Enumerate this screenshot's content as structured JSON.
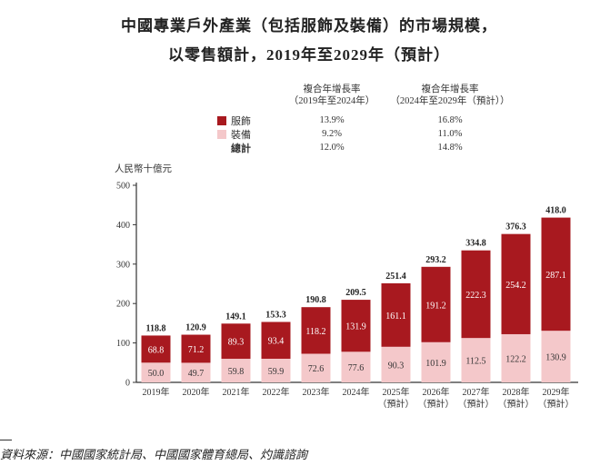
{
  "title_line1": "中國專業戶外產業（包括服飾及裝備）的市場規模，",
  "title_line2": "以零售額計，2019年至2029年（預計）",
  "cagr_table": {
    "headers": [
      {
        "line1": "複合年增長率",
        "line2": "（2019年至2024年）"
      },
      {
        "line1": "複合年增長率",
        "line2": "（2024年至2029年（預計））"
      }
    ],
    "rows": [
      {
        "label": "服飾",
        "color": "#A8191F",
        "values": [
          "13.9%",
          "16.8%"
        ]
      },
      {
        "label": "裝備",
        "color": "#F4C8CA",
        "values": [
          "9.2%",
          "11.0%"
        ]
      },
      {
        "label": "總計",
        "values": [
          "12.0%",
          "14.8%"
        ]
      }
    ]
  },
  "source": "資料來源：中國國家統計局、中國國家體育總局、灼識諮詢",
  "chart_data": {
    "type": "bar",
    "stacked": true,
    "ylabel": "人民幣十億元",
    "ylim": [
      0,
      500
    ],
    "yticks": [
      0,
      100,
      200,
      300,
      400,
      500
    ],
    "categories": [
      {
        "line1": "2019年",
        "line2": ""
      },
      {
        "line1": "2020年",
        "line2": ""
      },
      {
        "line1": "2021年",
        "line2": ""
      },
      {
        "line1": "2022年",
        "line2": ""
      },
      {
        "line1": "2023年",
        "line2": ""
      },
      {
        "line1": "2024年",
        "line2": ""
      },
      {
        "line1": "2025年",
        "line2": "（預計）"
      },
      {
        "line1": "2026年",
        "line2": "（預計）"
      },
      {
        "line1": "2027年",
        "line2": "（預計）"
      },
      {
        "line1": "2028年",
        "line2": "（預計）"
      },
      {
        "line1": "2029年",
        "line2": "（預計）"
      }
    ],
    "series": [
      {
        "name": "裝備",
        "color": "#F4C8CA",
        "values": [
          50.0,
          49.7,
          59.8,
          59.9,
          72.6,
          77.6,
          90.3,
          101.9,
          112.5,
          122.2,
          130.9
        ]
      },
      {
        "name": "服飾",
        "color": "#A8191F",
        "values": [
          68.8,
          71.2,
          89.3,
          93.4,
          118.2,
          131.9,
          161.1,
          191.2,
          222.3,
          254.2,
          287.1
        ]
      }
    ],
    "totals": [
      118.8,
      120.9,
      149.1,
      153.3,
      190.8,
      209.5,
      251.4,
      293.2,
      334.8,
      376.3,
      418.0
    ]
  }
}
